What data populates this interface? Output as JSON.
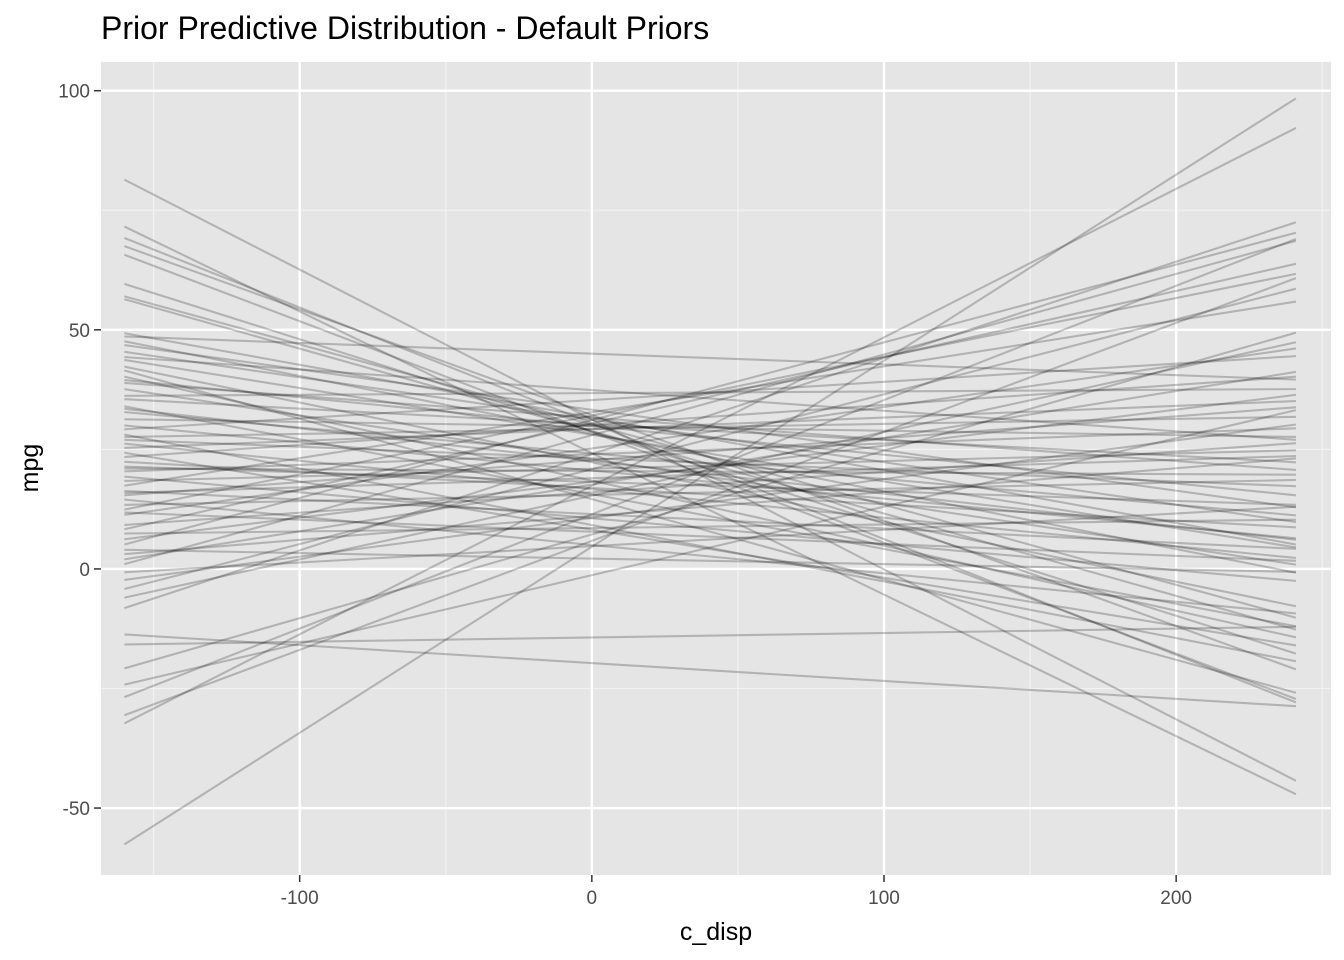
{
  "chart_data": {
    "type": "line",
    "title": "Prior Predictive Distribution - Default Priors",
    "xlabel": "c_disp",
    "ylabel": "mpg",
    "xlim": [
      -168,
      253
    ],
    "ylim": [
      -64,
      106
    ],
    "x_ticks": [
      -100,
      0,
      100,
      200
    ],
    "x_tick_labels": [
      "-100",
      "0",
      "100",
      "200"
    ],
    "y_ticks": [
      -50,
      0,
      50,
      100
    ],
    "y_tick_labels": [
      "-50",
      "0",
      "50",
      "100"
    ],
    "grid": true,
    "legend": "none",
    "colors": {
      "panel_background": "#e5e5e5",
      "grid_major": "#ffffff",
      "grid_minor": "#f2f2f2",
      "line": "#000000",
      "tick_mark": "#333333",
      "tick_label": "#4d4d4d"
    },
    "line_opacity": 0.22,
    "x_start": -160,
    "x_end": 241,
    "series": [
      {
        "values": [
          -57.6,
          98.4
        ]
      },
      {
        "values": [
          -32.3,
          92.2
        ]
      },
      {
        "values": [
          81.4,
          -44.3
        ]
      },
      {
        "values": [
          71.6,
          -47.1
        ]
      },
      {
        "values": [
          69.2,
          -27.9
        ]
      },
      {
        "values": [
          67.5,
          -21.0
        ]
      },
      {
        "values": [
          65.7,
          -27.2
        ]
      },
      {
        "values": [
          59.6,
          -17.7
        ]
      },
      {
        "values": [
          57.0,
          -10.2
        ]
      },
      {
        "values": [
          56.4,
          -12.7
        ]
      },
      {
        "values": [
          49.3,
          5.1
        ]
      },
      {
        "values": [
          47.6,
          -0.8
        ]
      },
      {
        "values": [
          46.8,
          12.9
        ]
      },
      {
        "values": [
          45.4,
          9.8
        ]
      },
      {
        "values": [
          43.7,
          4.5
        ]
      },
      {
        "values": [
          42.3,
          -7.8
        ]
      },
      {
        "values": [
          41.5,
          -25.9
        ]
      },
      {
        "values": [
          40.2,
          -14.3
        ]
      },
      {
        "values": [
          38.9,
          20.7
        ]
      },
      {
        "values": [
          37.6,
          0.9
        ]
      },
      {
        "values": [
          36.2,
          37.6
        ]
      },
      {
        "values": [
          35.5,
          22.3
        ]
      },
      {
        "values": [
          34.0,
          -12.0
        ]
      },
      {
        "values": [
          32.8,
          11.2
        ]
      },
      {
        "values": [
          31.3,
          27.6
        ]
      },
      {
        "values": [
          30.0,
          6.4
        ]
      },
      {
        "values": [
          29.2,
          44.5
        ]
      },
      {
        "values": [
          28.1,
          -19.3
        ]
      },
      {
        "values": [
          27.0,
          17.3
        ]
      },
      {
        "values": [
          26.2,
          2.3
        ]
      },
      {
        "values": [
          25.3,
          35.1
        ]
      },
      {
        "values": [
          24.3,
          -16.0
        ]
      },
      {
        "values": [
          23.4,
          40.2
        ]
      },
      {
        "values": [
          22.4,
          8.7
        ]
      },
      {
        "values": [
          21.4,
          13.4
        ]
      },
      {
        "values": [
          20.4,
          29.4
        ]
      },
      {
        "values": [
          19.3,
          -2.5
        ]
      },
      {
        "values": [
          18.4,
          24.8
        ]
      },
      {
        "values": [
          17.4,
          55.9
        ]
      },
      {
        "values": [
          16.3,
          4.2
        ]
      },
      {
        "values": [
          15.4,
          33.8
        ]
      },
      {
        "values": [
          14.5,
          -9.3
        ]
      },
      {
        "values": [
          13.4,
          18.6
        ]
      },
      {
        "values": [
          12.4,
          61.7
        ]
      },
      {
        "values": [
          11.3,
          46.1
        ]
      },
      {
        "values": [
          9.2,
          26.3
        ]
      },
      {
        "values": [
          8.3,
          63.8
        ]
      },
      {
        "values": [
          7.4,
          10.3
        ]
      },
      {
        "values": [
          6.2,
          36.4
        ]
      },
      {
        "values": [
          5.1,
          70.3
        ]
      },
      {
        "values": [
          4.0,
          -0.6
        ]
      },
      {
        "values": [
          3.1,
          23.1
        ]
      },
      {
        "values": [
          2.0,
          41.2
        ]
      },
      {
        "values": [
          1.0,
          68.6
        ]
      },
      {
        "values": [
          -0.7,
          13.0
        ]
      },
      {
        "values": [
          -2.3,
          30.2
        ]
      },
      {
        "values": [
          -4.2,
          58.6
        ]
      },
      {
        "values": [
          -6.0,
          47.4
        ]
      },
      {
        "values": [
          -8.2,
          72.5
        ]
      },
      {
        "values": [
          -13.7,
          -28.7
        ]
      },
      {
        "values": [
          -15.8,
          -12.1
        ]
      },
      {
        "values": [
          -20.8,
          49.4
        ]
      },
      {
        "values": [
          -24.2,
          33.2
        ]
      },
      {
        "values": [
          -26.8,
          69.0
        ]
      },
      {
        "values": [
          -30.6,
          60.8
        ]
      },
      {
        "values": [
          48.6,
          39.6
        ]
      },
      {
        "values": [
          44.3,
          27.0
        ]
      },
      {
        "values": [
          39.5,
          15.4
        ]
      },
      {
        "values": [
          33.5,
          6.1
        ]
      },
      {
        "values": [
          27.6,
          31.8
        ]
      },
      {
        "values": [
          21.0,
          19.7
        ]
      },
      {
        "values": [
          15.9,
          23.6
        ]
      },
      {
        "values": [
          11.8,
          1.7
        ]
      }
    ]
  }
}
